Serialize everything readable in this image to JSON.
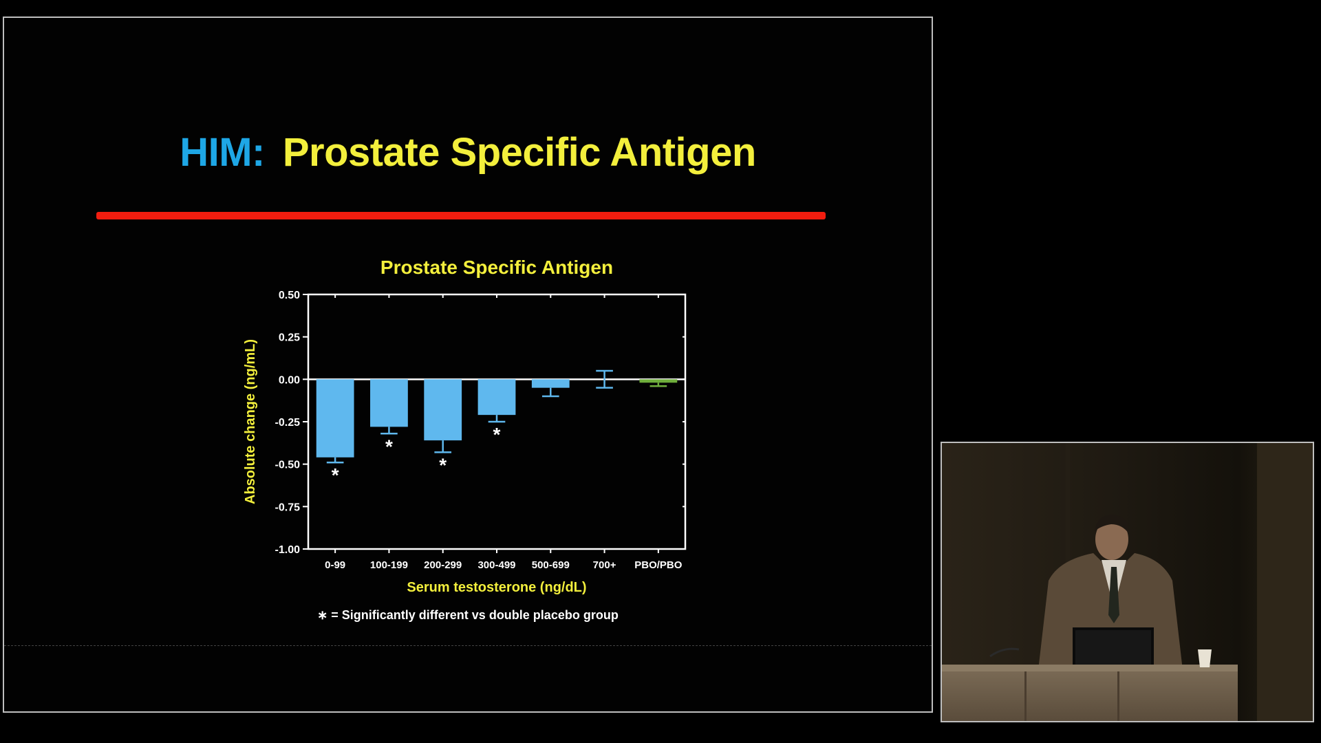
{
  "slide": {
    "title_prefix": "HIM:",
    "title_main": "Prostate Specific Antigen",
    "footnote_star": "∗",
    "footnote_text": "= Significantly different vs double placebo group"
  },
  "colors": {
    "title_prefix": "#1ea7e6",
    "title_main": "#f3ef3c",
    "rule": "#f21d0f",
    "bar": "#5fb8ee",
    "placebo_bar": "#6fae3c",
    "axis_text": "#f3ef3c"
  },
  "speaker_video": {
    "icon": "speaker-video-feed"
  },
  "chart_data": {
    "type": "bar",
    "title": "Prostate Specific Antigen",
    "xlabel": "Serum testosterone (ng/dL)",
    "ylabel": "Absolute change (ng/mL)",
    "categories": [
      "0-99",
      "100-199",
      "200-299",
      "300-499",
      "500-699",
      "700+",
      "PBO/PBO"
    ],
    "values": [
      -0.46,
      -0.28,
      -0.36,
      -0.21,
      -0.05,
      0.0,
      -0.02
    ],
    "error": [
      0.03,
      0.04,
      0.07,
      0.04,
      0.05,
      0.05,
      0.02
    ],
    "significant": [
      true,
      true,
      true,
      true,
      false,
      false,
      false
    ],
    "ylim": [
      -1.0,
      0.5
    ],
    "yticks": [
      "0.50",
      "0.25",
      "0.00",
      "-0.25",
      "-0.50",
      "-0.75",
      "-1.00"
    ],
    "ytick_values": [
      0.5,
      0.25,
      0.0,
      -0.25,
      -0.5,
      -0.75,
      -1.0
    ],
    "significance_marker": "*",
    "grid": false,
    "legend": "none"
  }
}
